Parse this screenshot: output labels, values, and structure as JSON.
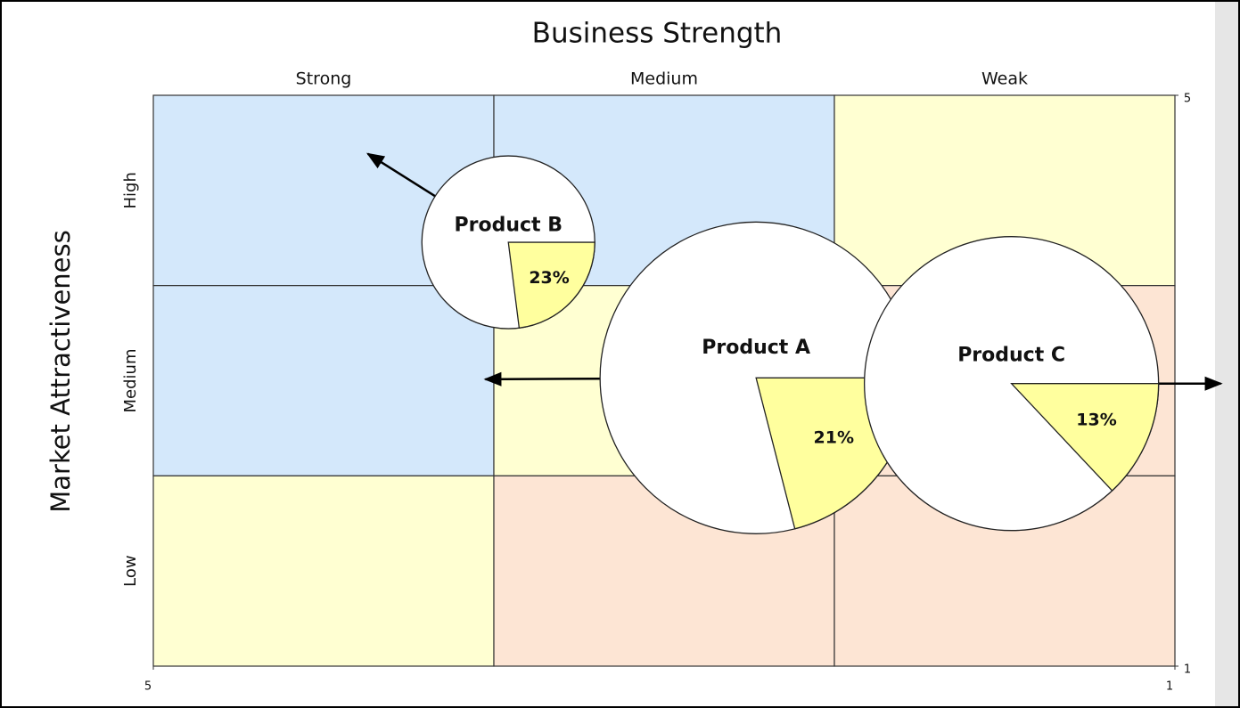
{
  "chart_data": {
    "type": "bubble-pie",
    "title": "Business Strength",
    "y_label": "Market Attractiveness",
    "columns": [
      "Strong",
      "Medium",
      "Weak"
    ],
    "rows": [
      "High",
      "Medium",
      "Low"
    ],
    "zone_colors": [
      [
        "#d4e8fb",
        "#d4e8fb",
        "#ffffd2"
      ],
      [
        "#d4e8fb",
        "#ffffd2",
        "#fde5d4"
      ],
      [
        "#ffffd2",
        "#fde5d4",
        "#fde5d4"
      ]
    ],
    "xlim": [
      5,
      1
    ],
    "ylim": [
      1,
      5
    ],
    "xticks": [
      5,
      1
    ],
    "yticks": [
      1,
      5
    ],
    "slice_color": "#ffff9e",
    "bubbles": [
      {
        "name": "Product A",
        "x": 2.64,
        "y": 3.02,
        "size": 1.75,
        "share": 21,
        "share_label": "21%",
        "target_x": 3.7,
        "target_y": 3.01
      },
      {
        "name": "Product B",
        "x": 3.61,
        "y": 3.97,
        "size": 0.97,
        "share": 23,
        "share_label": "23%",
        "target_x": 4.16,
        "target_y": 4.59
      },
      {
        "name": "Product C",
        "x": 1.64,
        "y": 2.98,
        "size": 1.65,
        "share": 13,
        "share_label": "13%",
        "target_x": 0.82,
        "target_y": 2.98
      }
    ]
  }
}
